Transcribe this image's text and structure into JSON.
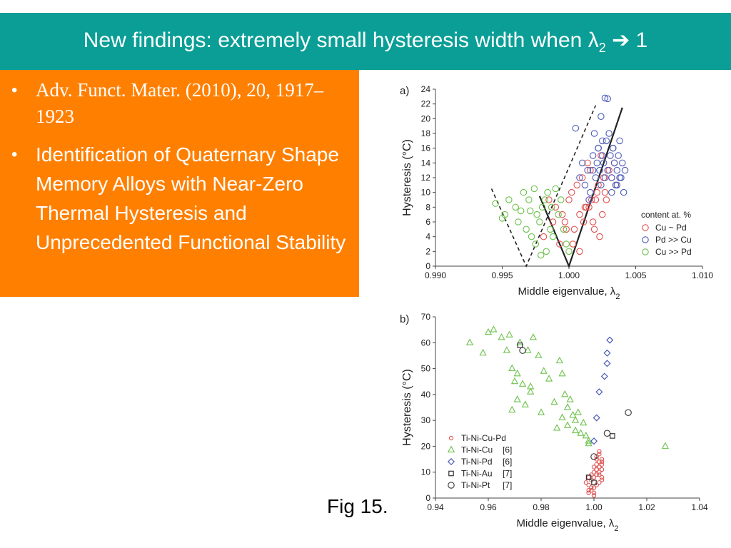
{
  "slide": {
    "title_main": "New findings: extremely small hysteresis width when λ",
    "title_sub": "2",
    "title_arrow": "➔",
    "title_end": "1",
    "bullets": [
      "Adv. Funct. Mater. (2010), 20, 1917–1923",
      "Identification of Quaternary Shape Memory Alloys with Near-Zero Thermal Hysteresis and Unprecedented Functional Stability"
    ],
    "caption": "Fig 15."
  },
  "chart_data": [
    {
      "type": "scatter",
      "panel_label": "a)",
      "xlabel": "Middle eigenvalue, λ",
      "xlabel_sub": "2",
      "ylabel": "Hysteresis (°C)",
      "xlim": [
        0.99,
        1.01
      ],
      "ylim": [
        0,
        24
      ],
      "xticks": [
        "0.990",
        "0.995",
        "1.000",
        "1.005",
        "1.010"
      ],
      "yticks": [
        "0",
        "2",
        "4",
        "6",
        "8",
        "10",
        "12",
        "14",
        "16",
        "18",
        "20",
        "22",
        "24"
      ],
      "legend_title": "content at. %",
      "legend_position": "bottom-right",
      "series": [
        {
          "name": "Cu ~ Pd",
          "color": "#e05050",
          "marker": "circle",
          "x": [
            0.9981,
            0.9985,
            0.9988,
            0.999,
            0.9993,
            0.9995,
            0.9997,
            1.0,
            1.0002,
            1.0004,
            1.0006,
            1.0008,
            1.001,
            1.0012,
            1.0014,
            1.0016,
            1.0018,
            1.002,
            1.0022,
            1.0024,
            1.0025,
            1.0027,
            1.003,
            1.0032,
            1.0034,
            1.0036,
            1.0015,
            1.0019,
            1.0023,
            1.0028,
            1.0008,
            1.0011,
            1.0003,
            0.9998,
            1.0026,
            1.0021,
            1.0017,
            1.0013
          ],
          "y": [
            4,
            9,
            6,
            8,
            3,
            7,
            6,
            9,
            10,
            5,
            11,
            2,
            12,
            8,
            14,
            13,
            6,
            9,
            11,
            15,
            7,
            10,
            13,
            12,
            14,
            11,
            8,
            5,
            4,
            9,
            7,
            6,
            3,
            5,
            12,
            10,
            9,
            8
          ]
        },
        {
          "name": "Pd >> Cu",
          "color": "#4a5ab8",
          "marker": "circle",
          "x": [
            1.0005,
            1.0008,
            1.001,
            1.0012,
            1.0014,
            1.0016,
            1.0018,
            1.002,
            1.0021,
            1.0022,
            1.0023,
            1.0024,
            1.0025,
            1.0026,
            1.0027,
            1.0028,
            1.0029,
            1.003,
            1.0031,
            1.0032,
            1.0033,
            1.0034,
            1.0035,
            1.0036,
            1.0037,
            1.0038,
            1.0039,
            1.004,
            1.0041,
            1.0042,
            1.0024,
            1.0027,
            1.0029,
            1.0033,
            1.0019,
            1.0015,
            1.0036,
            1.0032,
            1.0025,
            1.0038,
            1.0018,
            1.0022
          ],
          "y": [
            18.7,
            12,
            14,
            11,
            13,
            10,
            15,
            12,
            14,
            16,
            13,
            11,
            15,
            14,
            12,
            17,
            13,
            18,
            15,
            12,
            16,
            14,
            11,
            13,
            15,
            17,
            12,
            14,
            10,
            13,
            20.3,
            22.8,
            22.7,
            16,
            18,
            9,
            11,
            10,
            17,
            12,
            13,
            16
          ]
        },
        {
          "name": "Cu >> Pd",
          "color": "#6cc24a",
          "marker": "circle",
          "x": [
            0.9945,
            0.995,
            0.9952,
            0.9955,
            0.996,
            0.9962,
            0.9964,
            0.9966,
            0.9968,
            0.997,
            0.9972,
            0.9974,
            0.9976,
            0.9978,
            0.998,
            0.9982,
            0.9984,
            0.9986,
            0.9988,
            0.999,
            0.9992,
            0.9994,
            0.9996,
            0.9998,
            1.0,
            0.9975,
            0.9983,
            0.9979,
            0.9971,
            0.9987
          ],
          "y": [
            8.5,
            6.5,
            7,
            9,
            8,
            6,
            7.5,
            10,
            5,
            9,
            4,
            10.5,
            7,
            6,
            8,
            9,
            10,
            5,
            4,
            10.5,
            7,
            9,
            5,
            3,
            2,
            3,
            2,
            1.5,
            7.5,
            8
          ]
        }
      ],
      "annotations": [
        "dashed V-lines and solid V-lines as guides"
      ]
    },
    {
      "type": "scatter",
      "panel_label": "b)",
      "xlabel": "Middle eigenvalue, λ",
      "xlabel_sub": "2",
      "ylabel": "Hysteresis (°C)",
      "xlim": [
        0.94,
        1.04
      ],
      "ylim": [
        0,
        70
      ],
      "xticks": [
        "0.94",
        "0.96",
        "0.98",
        "1.00",
        "1.02",
        "1.04"
      ],
      "yticks": [
        "0",
        "10",
        "20",
        "30",
        "40",
        "50",
        "60",
        "70"
      ],
      "legend_position": "bottom-left",
      "series": [
        {
          "name": "Ti-Ni-Cu-Pd",
          "ref": "",
          "color": "#e05050",
          "marker": "small-circle",
          "x": [
            0.998,
            0.999,
            1.0,
            1.001,
            1.002,
            1.003,
            0.998,
            0.999,
            1.0,
            1.001,
            1.002,
            1.003,
            0.997,
            0.998,
            0.999,
            1.0,
            1.001,
            1.002,
            1.003,
            1.0,
            1.001,
            1.002,
            1.003,
            1.001,
            1.002,
            1.002,
            1.003,
            1.001,
            1.0,
            0.999,
            0.998,
            1.002,
            1.003,
            1.001,
            1.002,
            1.0
          ],
          "y": [
            2,
            3,
            4,
            5,
            6,
            7,
            8,
            9,
            10,
            11,
            12,
            13,
            6,
            5,
            7,
            8,
            9,
            10,
            11,
            12,
            13,
            14,
            15,
            16,
            17,
            18,
            14,
            15,
            1,
            4,
            3,
            9,
            8,
            11,
            12,
            2
          ]
        },
        {
          "name": "Ti-Ni-Cu",
          "ref": "[6]",
          "color": "#6cc24a",
          "marker": "triangle",
          "x": [
            0.953,
            0.958,
            0.96,
            0.962,
            0.965,
            0.967,
            0.968,
            0.969,
            0.97,
            0.971,
            0.972,
            0.973,
            0.974,
            0.975,
            0.976,
            0.977,
            0.979,
            0.981,
            0.983,
            0.985,
            0.987,
            0.988,
            0.989,
            0.99,
            0.991,
            0.992,
            0.993,
            0.994,
            0.995,
            0.996,
            0.997,
            0.998,
            0.969,
            0.971,
            0.976,
            0.98,
            0.988,
            0.99,
            0.993,
            1.027,
            0.998,
            0.986
          ],
          "y": [
            60,
            56,
            64,
            65,
            62,
            57,
            63,
            50,
            45,
            38,
            60,
            44,
            36,
            57,
            43,
            62,
            55,
            49,
            46,
            37,
            53,
            48,
            40,
            35,
            38,
            32,
            30,
            33,
            25,
            29,
            24,
            22,
            34,
            48,
            41,
            33,
            31,
            28,
            26,
            20,
            21,
            27
          ]
        },
        {
          "name": "Ti-Ni-Pd",
          "ref": "[6]",
          "color": "#4a5ab8",
          "marker": "diamond",
          "x": [
            1.0,
            1.001,
            1.002,
            1.004,
            1.005,
            1.005,
            1.006
          ],
          "y": [
            22,
            31,
            41,
            47,
            52,
            56,
            61
          ]
        },
        {
          "name": "Ti-Ni-Au",
          "ref": "[7]",
          "color": "#333333",
          "marker": "square",
          "x": [
            0.972,
            0.998,
            1.0,
            1.007
          ],
          "y": [
            59,
            8,
            6,
            24
          ]
        },
        {
          "name": "Ti-Ni-Pt",
          "ref": "[7]",
          "color": "#333333",
          "marker": "circle",
          "x": [
            0.973,
            1.0,
            1.005,
            1.013
          ],
          "y": [
            57,
            16,
            25,
            33
          ]
        }
      ]
    }
  ]
}
